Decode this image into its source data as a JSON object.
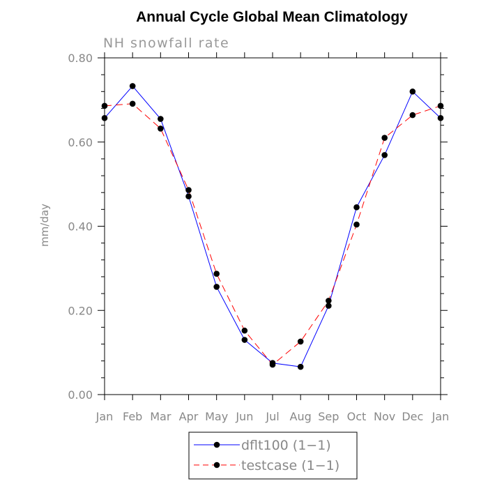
{
  "chart_data": {
    "type": "line",
    "title": "Annual Cycle Global Mean Climatology",
    "subtitle": "NH snowfall rate",
    "xlabel": "",
    "ylabel": "mm/day",
    "categories": [
      "Jan",
      "Feb",
      "Mar",
      "Apr",
      "May",
      "Jun",
      "Jul",
      "Aug",
      "Sep",
      "Oct",
      "Nov",
      "Dec",
      "Jan"
    ],
    "ylim": [
      0,
      0.8
    ],
    "yticks": [
      "0.00",
      "0.20",
      "0.40",
      "0.60",
      "0.80"
    ],
    "ytick_values": [
      0,
      0.2,
      0.4,
      0.6,
      0.8
    ],
    "y_minor_step": 0.04,
    "grid": false,
    "legend_position": "bottom-center",
    "series": [
      {
        "name": "dflt100 (1−1)",
        "color": "#0000ff",
        "line_style": "solid",
        "marker": "filled-circle",
        "values": [
          0.657,
          0.733,
          0.655,
          0.471,
          0.256,
          0.13,
          0.075,
          0.066,
          0.211,
          0.445,
          0.569,
          0.72,
          0.657
        ]
      },
      {
        "name": "testcase (1−1)",
        "color": "#ff0000",
        "line_style": "dashed",
        "marker": "filled-circle",
        "values": [
          0.686,
          0.691,
          0.632,
          0.486,
          0.287,
          0.152,
          0.071,
          0.126,
          0.223,
          0.404,
          0.61,
          0.664,
          0.686
        ]
      }
    ]
  }
}
